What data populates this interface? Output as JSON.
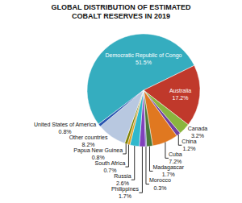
{
  "chart_data": {
    "type": "pie",
    "title": "GLOBAL DISTRIBUTION OF ESTIMATED COBALT RESERVES IN 2019",
    "categories": [
      "Democratic Republic of Congo\n51.5%",
      "Australia\n17.2%",
      "Canada\n3.2%",
      "China\n1.2%",
      "Cuba\n7.2%",
      "Madagascar\n1.7%",
      "Morocco\n0.3%",
      "Philippines\n1.7%",
      "Russia\n2.6%",
      "South Africa\n0.7%",
      "Papua New Guinea\n0.8%",
      "Other countries\n8.2%",
      "United States of America\n0.8%"
    ],
    "values": [
      51.5,
      17.2,
      3.2,
      1.2,
      7.2,
      1.7,
      0.3,
      1.7,
      2.6,
      0.7,
      0.8,
      8.2,
      0.8
    ],
    "colors": [
      "#35adbf",
      "#c0392b",
      "#8ab53e",
      "#7040a0",
      "#e07820",
      "#4a7a3a",
      "#3a3aaa",
      "#8040bb",
      "#30b8cc",
      "#e0a020",
      "#808000",
      "#b8c8e0",
      "#2855b0"
    ]
  }
}
